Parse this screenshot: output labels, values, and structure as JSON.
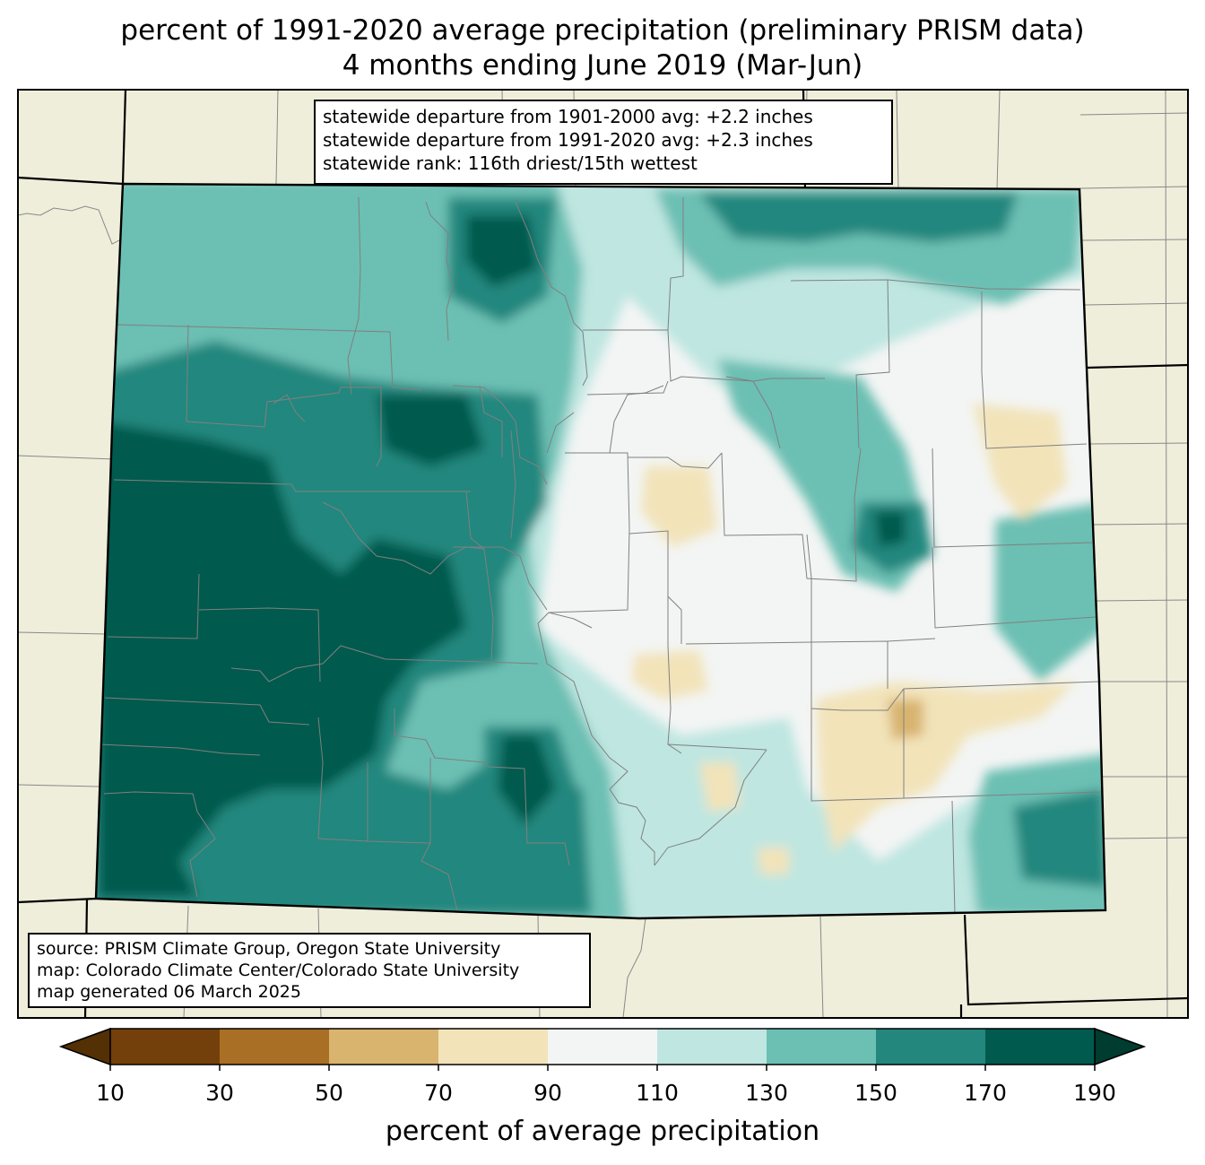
{
  "title": {
    "line1": "percent of 1991-2020 average precipitation (preliminary PRISM data)",
    "line2": "4 months ending June 2019 (Mar-Jun)"
  },
  "stats": {
    "line1": "statewide departure from 1901-2000 avg: +2.2 inches",
    "line2": "statewide departure from 1991-2020 avg: +2.3 inches",
    "line3": "statewide rank: 116th driest/15th wettest"
  },
  "source": {
    "line1": "source: PRISM Climate Group, Oregon State University",
    "line2": "map: Colorado Climate Center/Colorado State University",
    "line3": "map generated 06 March 2025"
  },
  "colorbar": {
    "title": "percent of average precipitation",
    "ticks": [
      "10",
      "30",
      "50",
      "70",
      "90",
      "110",
      "130",
      "150",
      "170",
      "190"
    ],
    "under_color": "#543005",
    "over_color": "#003c30",
    "bins": [
      {
        "from": 10,
        "to": 30,
        "color": "#73400b"
      },
      {
        "from": 30,
        "to": 50,
        "color": "#a96f24"
      },
      {
        "from": 50,
        "to": 70,
        "color": "#d8b46f"
      },
      {
        "from": 70,
        "to": 90,
        "color": "#f2e3b9"
      },
      {
        "from": 90,
        "to": 110,
        "color": "#f3f5f4"
      },
      {
        "from": 110,
        "to": 130,
        "color": "#bfe6e1"
      },
      {
        "from": 130,
        "to": 150,
        "color": "#6cbfb3"
      },
      {
        "from": 150,
        "to": 170,
        "color": "#23877e"
      },
      {
        "from": 170,
        "to": 190,
        "color": "#005a4e"
      }
    ]
  },
  "map": {
    "land_color": "#efeedb",
    "region": "Colorado"
  }
}
